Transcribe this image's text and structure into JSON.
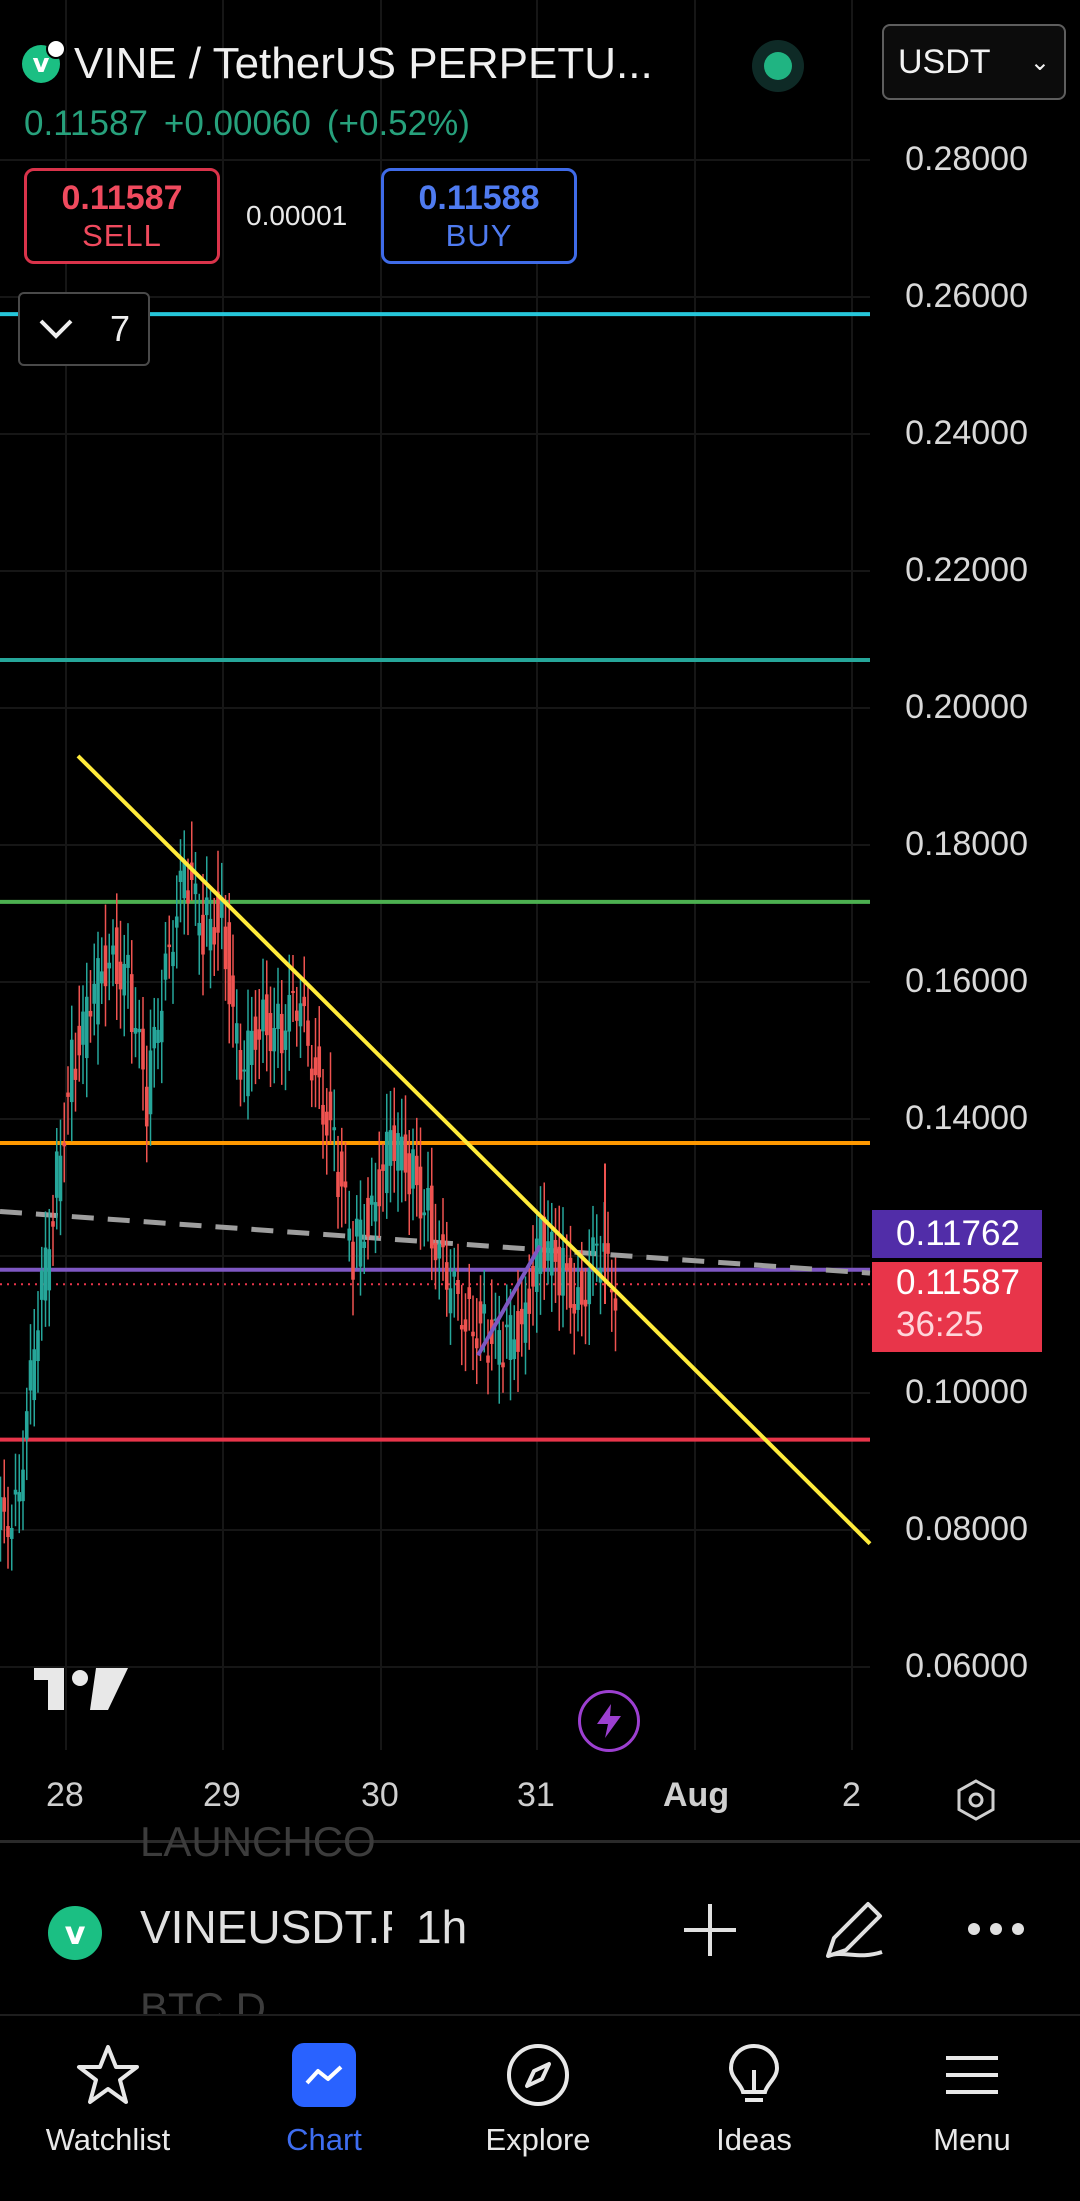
{
  "header": {
    "title": "VINE / TetherUS PERPETU...",
    "currency": "USDT",
    "price": "0.11587",
    "change": "+0.00060",
    "change_pct": "(+0.52%)"
  },
  "trade": {
    "sell_price": "0.11587",
    "sell_label": "SELL",
    "spread": "0.00001",
    "buy_price": "0.11588",
    "buy_label": "BUY"
  },
  "indicators_toggle": {
    "count": "7"
  },
  "chart_data": {
    "type": "candlestick",
    "symbol": "VINEUSDT",
    "interval": "1h",
    "y_ticks": [
      "0.28000",
      "0.26000",
      "0.24000",
      "0.22000",
      "0.20000",
      "0.18000",
      "0.16000",
      "0.14000",
      "0.10000",
      "0.08000",
      "0.06000"
    ],
    "ylim": [
      0.05,
      0.285
    ],
    "x_ticks": [
      "28",
      "29",
      "30",
      "31",
      "Aug",
      "2"
    ],
    "ema_value": "0.11762",
    "last_price": "0.11587",
    "countdown": "36:25",
    "horizontal_lines": [
      {
        "value": 0.2575,
        "color": "#26c6da"
      },
      {
        "value": 0.207,
        "color": "#26a69a"
      },
      {
        "value": 0.1717,
        "color": "#4caf50"
      },
      {
        "value": 0.1365,
        "color": "#ff9800"
      },
      {
        "value": 0.118,
        "color": "#7e57c2"
      },
      {
        "value": 0.0932,
        "color": "#e8354a"
      }
    ],
    "candles": [
      {
        "x": "28",
        "close": 0.084
      },
      {
        "x": "28",
        "close": 0.105
      },
      {
        "x": "28",
        "close": 0.128
      },
      {
        "x": "28",
        "close": 0.148
      },
      {
        "x": "28",
        "close": 0.156
      },
      {
        "x": "28",
        "close": 0.165
      },
      {
        "x": "28",
        "close": 0.16
      },
      {
        "x": "28",
        "close": 0.142
      },
      {
        "x": "29",
        "close": 0.164
      },
      {
        "x": "29",
        "close": 0.175
      },
      {
        "x": "29",
        "close": 0.168
      },
      {
        "x": "29",
        "close": 0.17
      },
      {
        "x": "29",
        "close": 0.145
      },
      {
        "x": "29",
        "close": 0.155
      },
      {
        "x": "29",
        "close": 0.153
      },
      {
        "x": "29",
        "close": 0.156
      },
      {
        "x": "29",
        "close": 0.148
      },
      {
        "x": "29",
        "close": 0.135
      },
      {
        "x": "29",
        "close": 0.12
      },
      {
        "x": "30",
        "close": 0.128
      },
      {
        "x": "30",
        "close": 0.136
      },
      {
        "x": "30",
        "close": 0.133
      },
      {
        "x": "30",
        "close": 0.127
      },
      {
        "x": "30",
        "close": 0.115
      },
      {
        "x": "30",
        "close": 0.112
      },
      {
        "x": "30",
        "close": 0.109
      },
      {
        "x": "30",
        "close": 0.106
      },
      {
        "x": "31",
        "close": 0.111
      },
      {
        "x": "31",
        "close": 0.122
      },
      {
        "x": "31",
        "close": 0.118
      },
      {
        "x": "31",
        "close": 0.114
      },
      {
        "x": "31",
        "close": 0.12
      },
      {
        "x": "31",
        "close": 0.1159
      }
    ]
  },
  "watermark": {
    "ticker_above": "LAUNCHCO",
    "ticker_below": "BTC.D"
  },
  "bottom_bar": {
    "symbol": "VINEUSDT.P",
    "interval": "1h"
  },
  "nav": [
    {
      "label": "Watchlist",
      "icon": "star-icon"
    },
    {
      "label": "Chart",
      "icon": "chart-icon"
    },
    {
      "label": "Explore",
      "icon": "compass-icon"
    },
    {
      "label": "Ideas",
      "icon": "lightbulb-icon"
    },
    {
      "label": "Menu",
      "icon": "hamburger-icon"
    }
  ],
  "colors": {
    "up": "#26a69a",
    "down": "#ef5350",
    "trendline": "#ffeb3b",
    "active_nav": "#3e6df0"
  }
}
